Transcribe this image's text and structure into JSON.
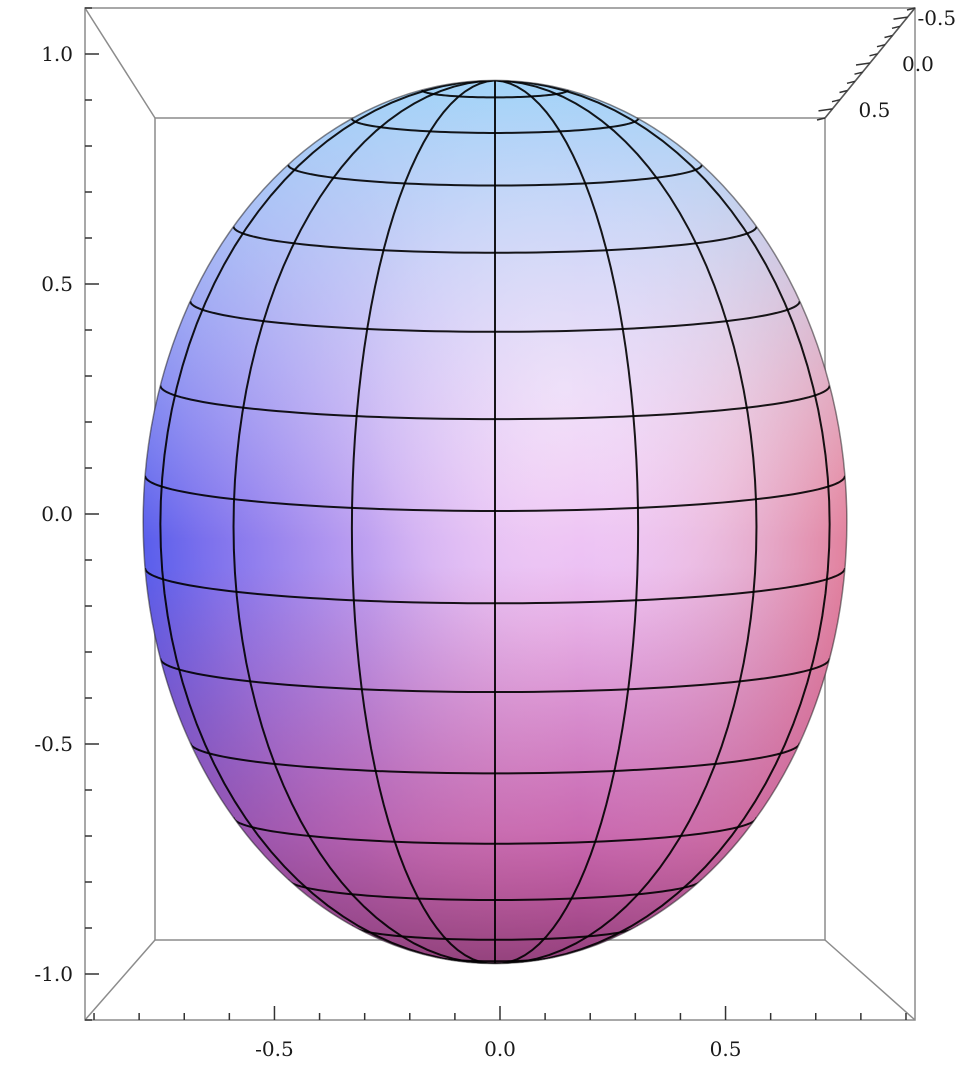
{
  "chart_data": {
    "type": "surface3d",
    "surface": "ellipsoid",
    "title": "",
    "xlabel": "",
    "ylabel": "",
    "zlabel": "",
    "semi_axes": {
      "x": 0.78,
      "y": 0.78,
      "z": 0.96
    },
    "center": {
      "x": 0.0,
      "y": 0.0,
      "z": 0.0
    },
    "mesh": {
      "meridians": 15,
      "parallels": 15
    },
    "x_axis": {
      "range": [
        -0.92,
        0.92
      ],
      "major_ticks": [
        -0.5,
        0.0,
        0.5
      ],
      "tick_labels": [
        "-0.5",
        "0.0",
        "0.5"
      ]
    },
    "vertical_axis": {
      "range": [
        -1.1,
        1.1
      ],
      "major_ticks": [
        -1.0,
        -0.5,
        0.0,
        0.5,
        1.0
      ],
      "tick_labels": [
        "-1.0",
        "-0.5",
        "0.0",
        "0.5",
        "1.0"
      ]
    },
    "depth_axis": {
      "range": [
        -0.6,
        0.6
      ],
      "major_ticks": [
        -0.5,
        0.0,
        0.5
      ],
      "tick_labels": [
        "-0.5",
        "0.0",
        "0.5"
      ]
    },
    "boxed": true,
    "grid": false,
    "legend": "none",
    "colors": {
      "top": "#9fd6f8",
      "upper_left": "#3a56f0",
      "center": "#efc3f8",
      "right": "#f4c39a",
      "lower_right": "#f0725f",
      "bottom": "#c43a6a",
      "mesh": "#000000",
      "box": "#8c8c8c",
      "background": "#ffffff"
    }
  }
}
